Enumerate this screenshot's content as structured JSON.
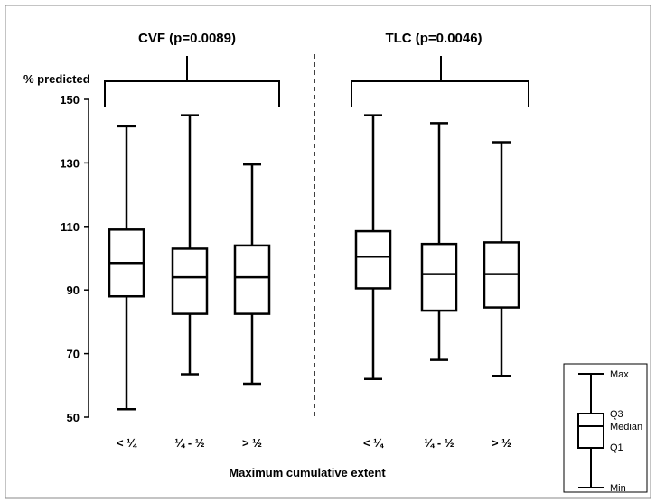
{
  "chart_data": {
    "type": "box",
    "ylabel": "% predicted",
    "xlabel": "Maximum cumulative extent",
    "ylim": [
      50,
      150
    ],
    "yticks": [
      50,
      70,
      90,
      110,
      130,
      150
    ],
    "categories": [
      "< ¼",
      "¼ - ½",
      "> ½"
    ],
    "groups": [
      {
        "title": "CVF (p=0.0089)",
        "boxes": [
          {
            "category": "< ¼",
            "min": 52.5,
            "q1": 88,
            "median": 98.5,
            "q3": 109,
            "max": 141.5
          },
          {
            "category": "¼ - ½",
            "min": 63.5,
            "q1": 82.5,
            "median": 94,
            "q3": 103,
            "max": 145
          },
          {
            "category": "> ½",
            "min": 60.5,
            "q1": 82.5,
            "median": 94,
            "q3": 104,
            "max": 129.5
          }
        ]
      },
      {
        "title": "TLC (p=0.0046)",
        "boxes": [
          {
            "category": "< ¼",
            "min": 62,
            "q1": 90.5,
            "median": 100.5,
            "q3": 108.5,
            "max": 145
          },
          {
            "category": "¼ - ½",
            "min": 68,
            "q1": 83.5,
            "median": 95,
            "q3": 104.5,
            "max": 142.5
          },
          {
            "category": "> ½",
            "min": 63,
            "q1": 84.5,
            "median": 95,
            "q3": 105,
            "max": 136.5
          }
        ]
      }
    ],
    "legend": {
      "position": "bottom-right",
      "labels": [
        "Max",
        "Q3",
        "Median",
        "Q1",
        "Min"
      ]
    },
    "grid": false
  }
}
